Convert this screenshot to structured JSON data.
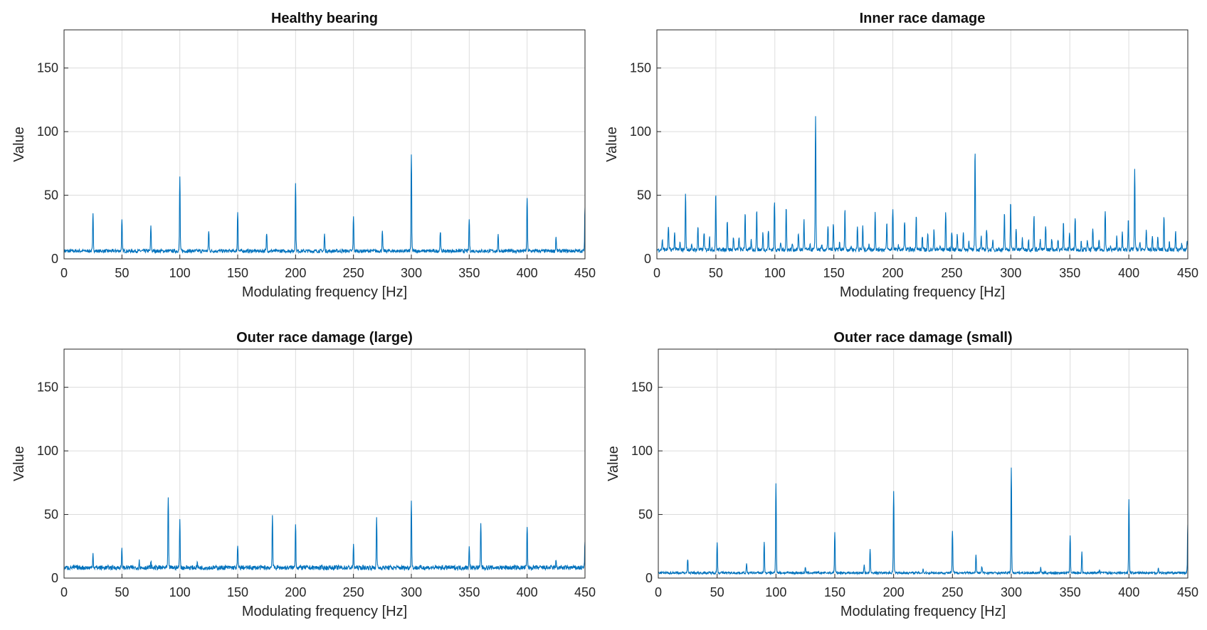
{
  "chart_data": [
    {
      "type": "line",
      "title": "Healthy bearing",
      "xlabel": "Modulating frequency [Hz]",
      "ylabel": "Value",
      "xlim": [
        0,
        450
      ],
      "ylim": [
        0,
        180
      ],
      "xticks": [
        0,
        50,
        100,
        150,
        200,
        250,
        300,
        350,
        400,
        450
      ],
      "yticks": [
        0,
        50,
        100,
        150
      ],
      "grid": true,
      "color": "#0072BD",
      "baseline": 6,
      "peaks": [
        [
          25,
          35
        ],
        [
          50,
          30
        ],
        [
          75,
          25
        ],
        [
          100,
          64
        ],
        [
          125,
          22
        ],
        [
          150,
          37
        ],
        [
          175,
          20
        ],
        [
          200,
          59
        ],
        [
          225,
          19
        ],
        [
          250,
          33
        ],
        [
          275,
          21
        ],
        [
          300,
          81
        ],
        [
          325,
          22
        ],
        [
          350,
          31
        ],
        [
          375,
          18
        ],
        [
          400,
          48
        ],
        [
          425,
          17
        ],
        [
          450,
          40
        ]
      ]
    },
    {
      "type": "line",
      "title": "Inner race damage",
      "xlabel": "Modulating frequency [Hz]",
      "ylabel": "Value",
      "xlim": [
        0,
        450
      ],
      "ylim": [
        0,
        180
      ],
      "xticks": [
        0,
        50,
        100,
        150,
        200,
        250,
        300,
        350,
        400,
        450
      ],
      "yticks": [
        0,
        50,
        100,
        150
      ],
      "grid": true,
      "color": "#0072BD",
      "baseline": 7,
      "peaks": [
        [
          4.6,
          15
        ],
        [
          9.8,
          25
        ],
        [
          15,
          20
        ],
        [
          19.7,
          12
        ],
        [
          24.3,
          50
        ],
        [
          29.5,
          10
        ],
        [
          34.8,
          25
        ],
        [
          40,
          21
        ],
        [
          44.6,
          17
        ],
        [
          49.9,
          50
        ],
        [
          54.5,
          8
        ],
        [
          59.7,
          30
        ],
        [
          65,
          17
        ],
        [
          69.6,
          17
        ],
        [
          74.8,
          36
        ],
        [
          80,
          14
        ],
        [
          84.6,
          37
        ],
        [
          89.9,
          20
        ],
        [
          94.5,
          22
        ],
        [
          99.7,
          44
        ],
        [
          105,
          12
        ],
        [
          109.6,
          39
        ],
        [
          114.8,
          12
        ],
        [
          120,
          20
        ],
        [
          124.7,
          30
        ],
        [
          129.9,
          10
        ],
        [
          134.5,
          112
        ],
        [
          139.8,
          10
        ],
        [
          145,
          25
        ],
        [
          149.6,
          26
        ],
        [
          154.8,
          12
        ],
        [
          159.4,
          38
        ],
        [
          164.7,
          10
        ],
        [
          170,
          25
        ],
        [
          174.5,
          25
        ],
        [
          179.8,
          12
        ],
        [
          185,
          37
        ],
        [
          189.6,
          8
        ],
        [
          194.9,
          27
        ],
        [
          200,
          39
        ],
        [
          204.7,
          10
        ],
        [
          210,
          30
        ],
        [
          214.6,
          8
        ],
        [
          219.8,
          34
        ],
        [
          225,
          18
        ],
        [
          229.6,
          19
        ],
        [
          234.9,
          22
        ],
        [
          240,
          10
        ],
        [
          244.8,
          35
        ],
        [
          250,
          21
        ],
        [
          254.6,
          18
        ],
        [
          259.8,
          20
        ],
        [
          264.4,
          13
        ],
        [
          269.7,
          84
        ],
        [
          274.9,
          17
        ],
        [
          279.5,
          23
        ],
        [
          284.8,
          14
        ],
        [
          290,
          8
        ],
        [
          294.6,
          34
        ],
        [
          299.9,
          44
        ],
        [
          304.5,
          23
        ],
        [
          309.8,
          16
        ],
        [
          315,
          15
        ],
        [
          319.6,
          33
        ],
        [
          324.9,
          14
        ],
        [
          329.5,
          26
        ],
        [
          334.7,
          16
        ],
        [
          340,
          14
        ],
        [
          344.6,
          29
        ],
        [
          349.8,
          20
        ],
        [
          354.5,
          33
        ],
        [
          359.7,
          13
        ],
        [
          364.9,
          14
        ],
        [
          369.5,
          24
        ],
        [
          374.8,
          15
        ],
        [
          380,
          37
        ],
        [
          384.6,
          9
        ],
        [
          389.8,
          17
        ],
        [
          394.5,
          20
        ],
        [
          399.6,
          30
        ],
        [
          405,
          69
        ],
        [
          409.5,
          13
        ],
        [
          414.8,
          22
        ],
        [
          420,
          17
        ],
        [
          424.6,
          16
        ],
        [
          429.8,
          32
        ],
        [
          434.4,
          12
        ],
        [
          439.7,
          21
        ],
        [
          445,
          12
        ],
        [
          449.5,
          15
        ]
      ]
    },
    {
      "type": "line",
      "title": "Outer race damage (large)",
      "xlabel": "Modulating frequency [Hz]",
      "ylabel": "Value",
      "xlim": [
        0,
        450
      ],
      "ylim": [
        0,
        180
      ],
      "xticks": [
        0,
        50,
        100,
        150,
        200,
        250,
        300,
        350,
        400,
        450
      ],
      "yticks": [
        0,
        50,
        100,
        150
      ],
      "grid": true,
      "color": "#0072BD",
      "baseline": 8,
      "peaks": [
        [
          25,
          19
        ],
        [
          50,
          22
        ],
        [
          65,
          13
        ],
        [
          75,
          12
        ],
        [
          90,
          62
        ],
        [
          100,
          46
        ],
        [
          115,
          12
        ],
        [
          150,
          25
        ],
        [
          180,
          49
        ],
        [
          200,
          43
        ],
        [
          250,
          25
        ],
        [
          270,
          46
        ],
        [
          300,
          60
        ],
        [
          350,
          24
        ],
        [
          360,
          42
        ],
        [
          400,
          40
        ],
        [
          425,
          13
        ],
        [
          450,
          29
        ]
      ]
    },
    {
      "type": "line",
      "title": "Outer race damage (small)",
      "xlabel": "Modulating frequency [Hz]",
      "ylabel": "Value",
      "xlim": [
        0,
        450
      ],
      "ylim": [
        0,
        180
      ],
      "xticks": [
        0,
        50,
        100,
        150,
        200,
        250,
        300,
        350,
        400,
        450
      ],
      "yticks": [
        0,
        50,
        100,
        150
      ],
      "grid": true,
      "color": "#0072BD",
      "baseline": 4,
      "peaks": [
        [
          25,
          15
        ],
        [
          50,
          28
        ],
        [
          75,
          11
        ],
        [
          90,
          28
        ],
        [
          100,
          75
        ],
        [
          125,
          8
        ],
        [
          150,
          36
        ],
        [
          175,
          10
        ],
        [
          180,
          22
        ],
        [
          200,
          69
        ],
        [
          225,
          7
        ],
        [
          250,
          37
        ],
        [
          270,
          18
        ],
        [
          275,
          9
        ],
        [
          300,
          87
        ],
        [
          325,
          8
        ],
        [
          350,
          34
        ],
        [
          360,
          20
        ],
        [
          375,
          7
        ],
        [
          400,
          62
        ],
        [
          425,
          8
        ],
        [
          450,
          42
        ]
      ]
    }
  ]
}
